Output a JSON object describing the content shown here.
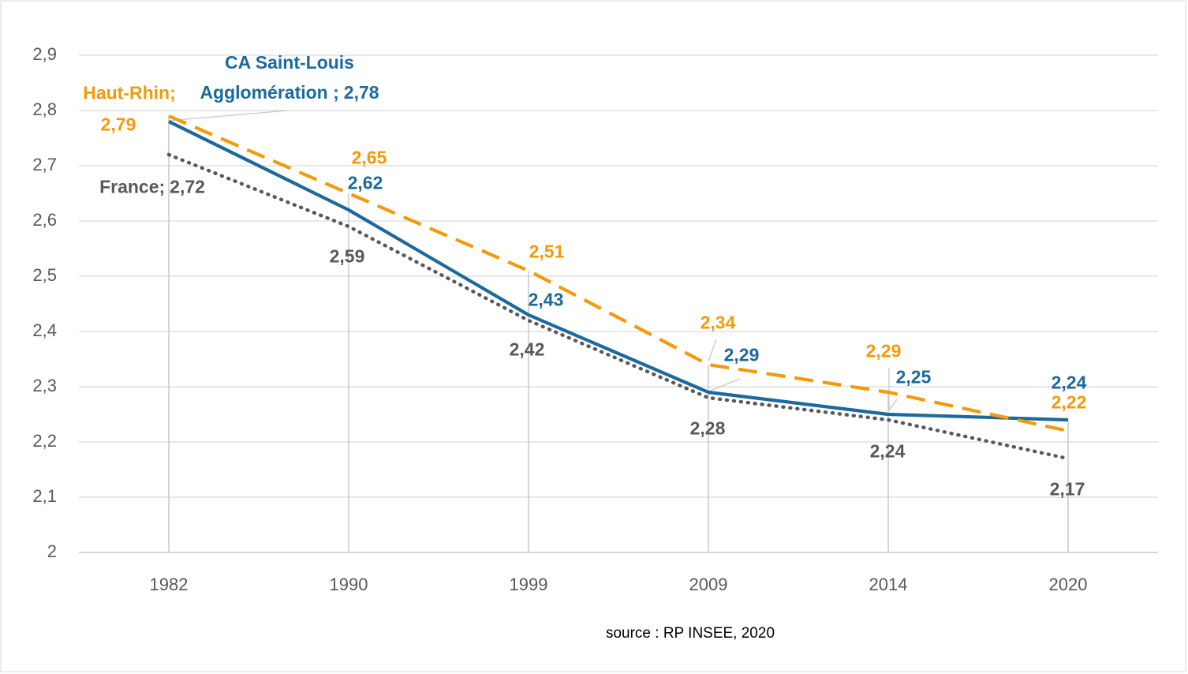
{
  "chart_data": {
    "type": "line",
    "categories": [
      "1982",
      "1990",
      "1999",
      "2009",
      "2014",
      "2020"
    ],
    "series": [
      {
        "name": "France",
        "name_label": "France;",
        "color": "#595959",
        "style": "dotted",
        "values": [
          2.72,
          2.59,
          2.42,
          2.28,
          2.24,
          2.17
        ],
        "value_labels": [
          "2,72",
          "2,59",
          "2,42",
          "2,28",
          "2,24",
          "2,17"
        ]
      },
      {
        "name": "CA Saint-Louis Agglomération",
        "name_label": "CA Saint-Louis Agglomération ;",
        "color": "#1b6a9b",
        "style": "solid",
        "values": [
          2.78,
          2.62,
          2.43,
          2.29,
          2.25,
          2.24
        ],
        "value_labels": [
          "2,78",
          "2,62",
          "2,43",
          "2,29",
          "2,25",
          "2,24"
        ]
      },
      {
        "name": "Haut-Rhin",
        "name_label": "Haut-Rhin;",
        "color": "#f39a0a",
        "style": "dashed",
        "values": [
          2.79,
          2.65,
          2.51,
          2.34,
          2.29,
          2.22
        ],
        "value_labels": [
          "2,79",
          "2,65",
          "2,51",
          "2,34",
          "2,29",
          "2,22"
        ]
      }
    ],
    "ylim": [
      2,
      2.9
    ],
    "yticks": [
      2,
      {
        "value": 2.1,
        "label": "2,1"
      },
      {
        "value": 2.2,
        "label": "2,2"
      },
      {
        "value": 2.3,
        "label": "2,3"
      },
      {
        "value": 2.4,
        "label": "2,4"
      },
      {
        "value": 2.5,
        "label": "2,5"
      },
      {
        "value": 2.6,
        "label": "2,6"
      },
      {
        "value": 2.7,
        "label": "2,7"
      },
      {
        "value": 2.8,
        "label": "2,8"
      },
      {
        "value": 2.9,
        "label": "2,9"
      }
    ],
    "grid": true,
    "drop_lines": true,
    "source": "source : RP INSEE, 2020"
  }
}
